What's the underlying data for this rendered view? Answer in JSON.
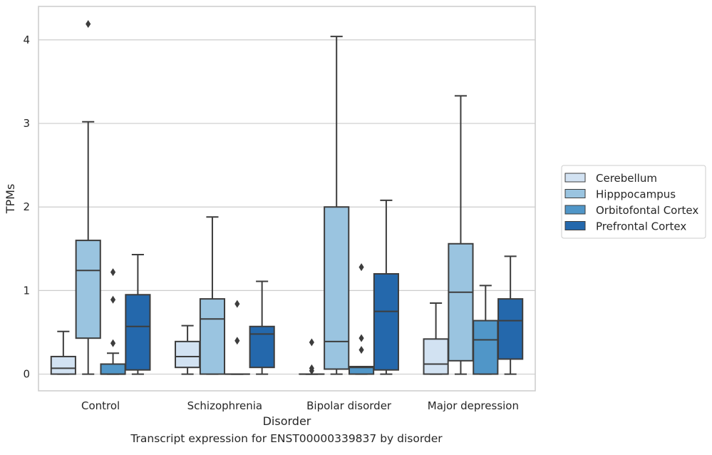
{
  "caption": "Transcript expression for ENST00000339837 by disorder",
  "chart_data": {
    "type": "boxplot",
    "xlabel": "Disorder",
    "ylabel": "TPMs",
    "ylim": [
      -0.2,
      4.4
    ],
    "yticks": [
      0,
      1,
      2,
      3,
      4
    ],
    "grid": "horizontal",
    "legend_position": "right",
    "categories": [
      "Control",
      "Schizophrenia",
      "Bipolar disorder",
      "Major depression"
    ],
    "series": [
      {
        "name": "Cerebellum",
        "color": "#d2e2f2",
        "boxes": [
          {
            "whislo": 0,
            "q1": 0,
            "med": 0.07,
            "q3": 0.21,
            "whishi": 0.51,
            "fliers": []
          },
          {
            "whislo": 0,
            "q1": 0.08,
            "med": 0.21,
            "q3": 0.39,
            "whishi": 0.58,
            "fliers": []
          },
          {
            "whislo": 0,
            "q1": 0,
            "med": 0,
            "q3": 0,
            "whishi": 0,
            "fliers": [
              0.04,
              0.07,
              0.38
            ]
          },
          {
            "whislo": 0,
            "q1": 0,
            "med": 0.12,
            "q3": 0.42,
            "whishi": 0.85,
            "fliers": []
          }
        ]
      },
      {
        "name": "Hipppocampus",
        "color": "#9ac4e0",
        "boxes": [
          {
            "whislo": 0,
            "q1": 0.43,
            "med": 1.24,
            "q3": 1.6,
            "whishi": 3.02,
            "fliers": [
              4.19
            ]
          },
          {
            "whislo": 0,
            "q1": 0,
            "med": 0.66,
            "q3": 0.9,
            "whishi": 1.88,
            "fliers": []
          },
          {
            "whislo": 0,
            "q1": 0.06,
            "med": 0.39,
            "q3": 2.0,
            "whishi": 4.04,
            "fliers": []
          },
          {
            "whislo": 0,
            "q1": 0.16,
            "med": 0.98,
            "q3": 1.56,
            "whishi": 3.33,
            "fliers": []
          }
        ]
      },
      {
        "name": "Orbitofontal Cortex",
        "color": "#5096c8",
        "boxes": [
          {
            "whislo": 0,
            "q1": 0,
            "med": 0,
            "q3": 0.12,
            "whishi": 0.25,
            "fliers": [
              0.37,
              0.89,
              1.22
            ]
          },
          {
            "whislo": 0,
            "q1": 0,
            "med": 0,
            "q3": 0,
            "whishi": 0,
            "fliers": [
              0.4,
              0.84
            ]
          },
          {
            "whislo": 0,
            "q1": 0,
            "med": 0.08,
            "q3": 0.09,
            "whishi": 0.09,
            "fliers": [
              0.29,
              0.43,
              1.28
            ]
          },
          {
            "whislo": 0,
            "q1": 0,
            "med": 0.41,
            "q3": 0.64,
            "whishi": 1.06,
            "fliers": []
          }
        ]
      },
      {
        "name": "Prefrontal Cortex",
        "color": "#2468ac",
        "boxes": [
          {
            "whislo": 0,
            "q1": 0.05,
            "med": 0.57,
            "q3": 0.95,
            "whishi": 1.43,
            "fliers": []
          },
          {
            "whislo": 0,
            "q1": 0.08,
            "med": 0.48,
            "q3": 0.57,
            "whishi": 1.11,
            "fliers": []
          },
          {
            "whislo": 0,
            "q1": 0.05,
            "med": 0.75,
            "q3": 1.2,
            "whishi": 2.08,
            "fliers": []
          },
          {
            "whislo": 0,
            "q1": 0.18,
            "med": 0.64,
            "q3": 0.9,
            "whishi": 1.41,
            "fliers": []
          }
        ]
      }
    ]
  }
}
